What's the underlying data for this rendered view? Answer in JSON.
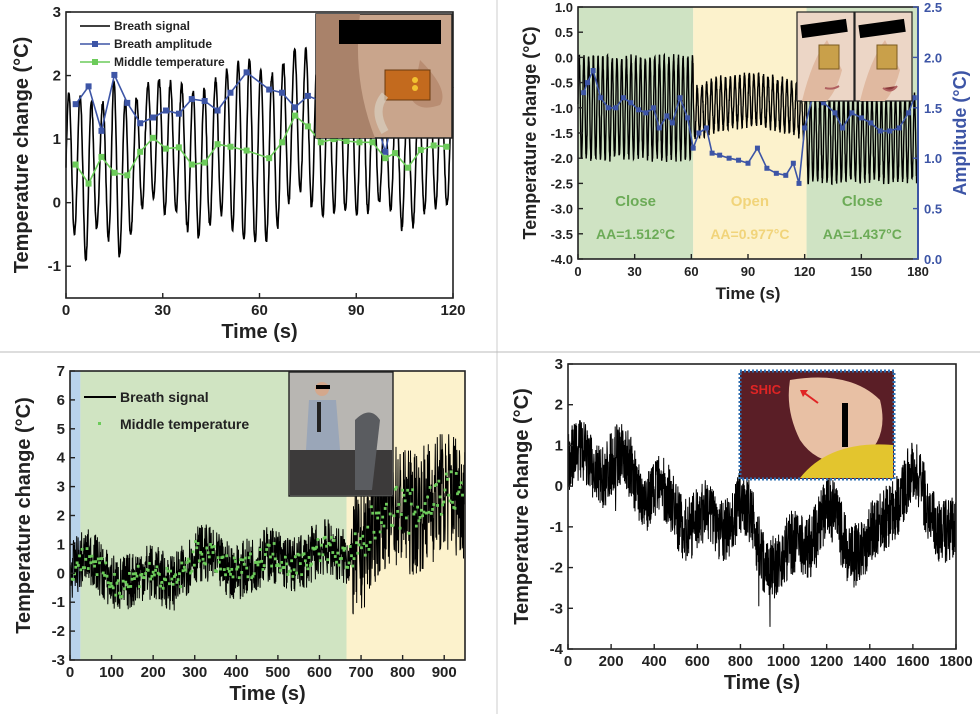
{
  "colors": {
    "signal": "#000000",
    "amplitude": "#3d55a6",
    "middle": "#6ccb5a",
    "close_bg": "#cfe3c3",
    "open_bg": "#fcf2cc",
    "blue_bg": "#b9d3ec",
    "exercise_bg": "#d0e4c2",
    "close_text": "#6cab57",
    "open_text": "#f1d47a",
    "right_axis": "#3d55a6",
    "shic": "#e02424"
  },
  "chart_data": [
    {
      "id": "a",
      "type": "line",
      "xlabel": "Time (s)",
      "ylabel": "Temperature change (°C)",
      "xlim": [
        0,
        120
      ],
      "ylim": [
        -1.5,
        3
      ],
      "xticks": [
        0,
        30,
        60,
        90,
        120
      ],
      "yticks": [
        -1,
        0,
        1,
        2,
        3
      ],
      "legend": [
        "Breath signal",
        "Breath amplitude",
        "Middle temperature"
      ],
      "legend_position": "top-left",
      "inset": "photo of face with nasal sensor",
      "breath_period_s": 3.5,
      "x": [
        3,
        7,
        11,
        15,
        19,
        23,
        27,
        31,
        35,
        39,
        43,
        47,
        51,
        56,
        63,
        67,
        71,
        75,
        79,
        83,
        87,
        91,
        95,
        99,
        102,
        106,
        110,
        114,
        118
      ],
      "series": [
        {
          "name": "Breath amplitude",
          "values": [
            1.55,
            1.83,
            1.13,
            2.01,
            1.57,
            1.25,
            1.34,
            1.45,
            1.4,
            1.63,
            1.6,
            1.45,
            1.73,
            2.05,
            1.78,
            1.73,
            1.5,
            1.68,
            1.6,
            1.6,
            1.55,
            1.6,
            1.5,
            0.8,
            1.5,
            1.45,
            1.4,
            1.35,
            1.3
          ]
        },
        {
          "name": "Middle temperature",
          "values": [
            0.6,
            0.3,
            0.72,
            0.47,
            0.43,
            0.8,
            1.02,
            0.85,
            0.87,
            0.6,
            0.63,
            0.92,
            0.88,
            0.82,
            0.7,
            0.95,
            1.37,
            1.2,
            0.95,
            1.0,
            0.97,
            0.95,
            0.95,
            0.7,
            0.78,
            0.55,
            0.83,
            0.9,
            0.88
          ]
        }
      ]
    },
    {
      "id": "b",
      "type": "line",
      "xlabel": "Time (s)",
      "ylabel": "Temperature change (°C)",
      "ylabel_right": "Amplitude (°C)",
      "xlim": [
        0,
        180
      ],
      "ylim": [
        -4,
        1
      ],
      "ylim_right": [
        0,
        2.5
      ],
      "xticks": [
        0,
        30,
        60,
        90,
        120,
        150,
        180
      ],
      "yticks": [
        -4.0,
        -3.5,
        -3.0,
        -2.5,
        -2.0,
        -1.5,
        -1.0,
        -0.5,
        0.0,
        0.5,
        1.0
      ],
      "yticks_right": [
        0.0,
        0.5,
        1.0,
        1.5,
        2.0,
        2.5
      ],
      "regions": [
        {
          "label": "Close",
          "from": 0,
          "to": 61,
          "annotation": "AA=1.512°C",
          "kind": "close"
        },
        {
          "label": "Open",
          "from": 61,
          "to": 121,
          "annotation": "AA=0.977°C",
          "kind": "open"
        },
        {
          "label": "Close",
          "from": 121,
          "to": 180,
          "annotation": "AA=1.437°C",
          "kind": "close"
        }
      ],
      "inset": "two photos of nose sensor, mouth closed and open",
      "breath_period_s": 2.5,
      "breath_segments": [
        {
          "from": 0,
          "to": 61,
          "center": -1.0,
          "peak_to_peak": 2.0
        },
        {
          "from": 61,
          "to": 121,
          "center": -1.1,
          "peak_to_peak": 1.0
        },
        {
          "from": 121,
          "to": 180,
          "center": -1.6,
          "peak_to_peak": 1.7
        }
      ],
      "amplitude_x": [
        3,
        5,
        8,
        12,
        16,
        20,
        24,
        28,
        32,
        36,
        40,
        43,
        47,
        50,
        54,
        58,
        61,
        64,
        68,
        71,
        75,
        80,
        85,
        90,
        95,
        100,
        105,
        110,
        114,
        117,
        120,
        124,
        130,
        136,
        140,
        145,
        150,
        155,
        160,
        165,
        170,
        175,
        178
      ],
      "amplitude_values": [
        1.65,
        1.75,
        1.87,
        1.6,
        1.5,
        1.5,
        1.6,
        1.55,
        1.48,
        1.45,
        1.5,
        1.3,
        1.42,
        1.35,
        1.6,
        1.4,
        1.1,
        1.25,
        1.3,
        1.05,
        1.03,
        1.0,
        0.98,
        0.95,
        1.1,
        0.9,
        0.85,
        0.83,
        0.95,
        0.75,
        1.3,
        1.6,
        1.55,
        1.45,
        1.3,
        1.45,
        1.4,
        1.35,
        1.27,
        1.27,
        1.3,
        1.45,
        1.6
      ]
    },
    {
      "id": "c",
      "type": "line",
      "xlabel": "Time (s)",
      "ylabel": "Temperature change (°C)",
      "xlim": [
        0,
        950
      ],
      "ylim": [
        -3,
        7
      ],
      "xticks": [
        0,
        100,
        200,
        300,
        400,
        500,
        600,
        700,
        800,
        900
      ],
      "yticks": [
        -3,
        -2,
        -1,
        0,
        1,
        2,
        3,
        4,
        5,
        6,
        7
      ],
      "legend": [
        "Breath signal",
        "Middle temperature"
      ],
      "legend_position": "top-left",
      "regions": [
        {
          "from": 0,
          "to": 25,
          "kind": "blue"
        },
        {
          "from": 25,
          "to": 665,
          "kind": "green"
        },
        {
          "from": 665,
          "to": 950,
          "kind": "yellow"
        }
      ],
      "inset": "photo of man exercising on elliptical machine",
      "trend_x": [
        0,
        50,
        100,
        150,
        200,
        250,
        300,
        350,
        400,
        450,
        500,
        550,
        600,
        650,
        700,
        750,
        800,
        850,
        900,
        950
      ],
      "trend_values": [
        0,
        0.3,
        0,
        -0.3,
        -0.2,
        0,
        0.5,
        0.3,
        0.4,
        0.2,
        0.5,
        0.6,
        0.6,
        0.6,
        1.0,
        2.0,
        2.3,
        2.5,
        2.5,
        2.8
      ],
      "noise_before_680": 1.0,
      "noise_after_680": 2.2
    },
    {
      "id": "d",
      "type": "line",
      "xlabel": "Time (s)",
      "ylabel": "Temperature change (°C)",
      "xlim": [
        0,
        1800
      ],
      "ylim": [
        -4,
        3
      ],
      "xticks": [
        0,
        200,
        400,
        600,
        800,
        1000,
        1200,
        1400,
        1600,
        1800
      ],
      "yticks": [
        -4,
        -3,
        -2,
        -1,
        0,
        1,
        2,
        3
      ],
      "inset": "photo of sleeping person with sensor",
      "inset_label": "SHIC",
      "trend_x": [
        0,
        100,
        200,
        300,
        400,
        500,
        600,
        700,
        800,
        900,
        1000,
        1100,
        1200,
        1300,
        1400,
        1500,
        1600,
        1700,
        1800
      ],
      "trend_values": [
        0.5,
        0.6,
        0.5,
        0.4,
        -0.3,
        -0.5,
        -1.0,
        -0.8,
        -0.6,
        -1.5,
        -2.0,
        -1.2,
        -0.8,
        -1.3,
        -1.6,
        -0.3,
        0.1,
        -0.6,
        -1.5
      ],
      "noise": 0.8
    }
  ]
}
